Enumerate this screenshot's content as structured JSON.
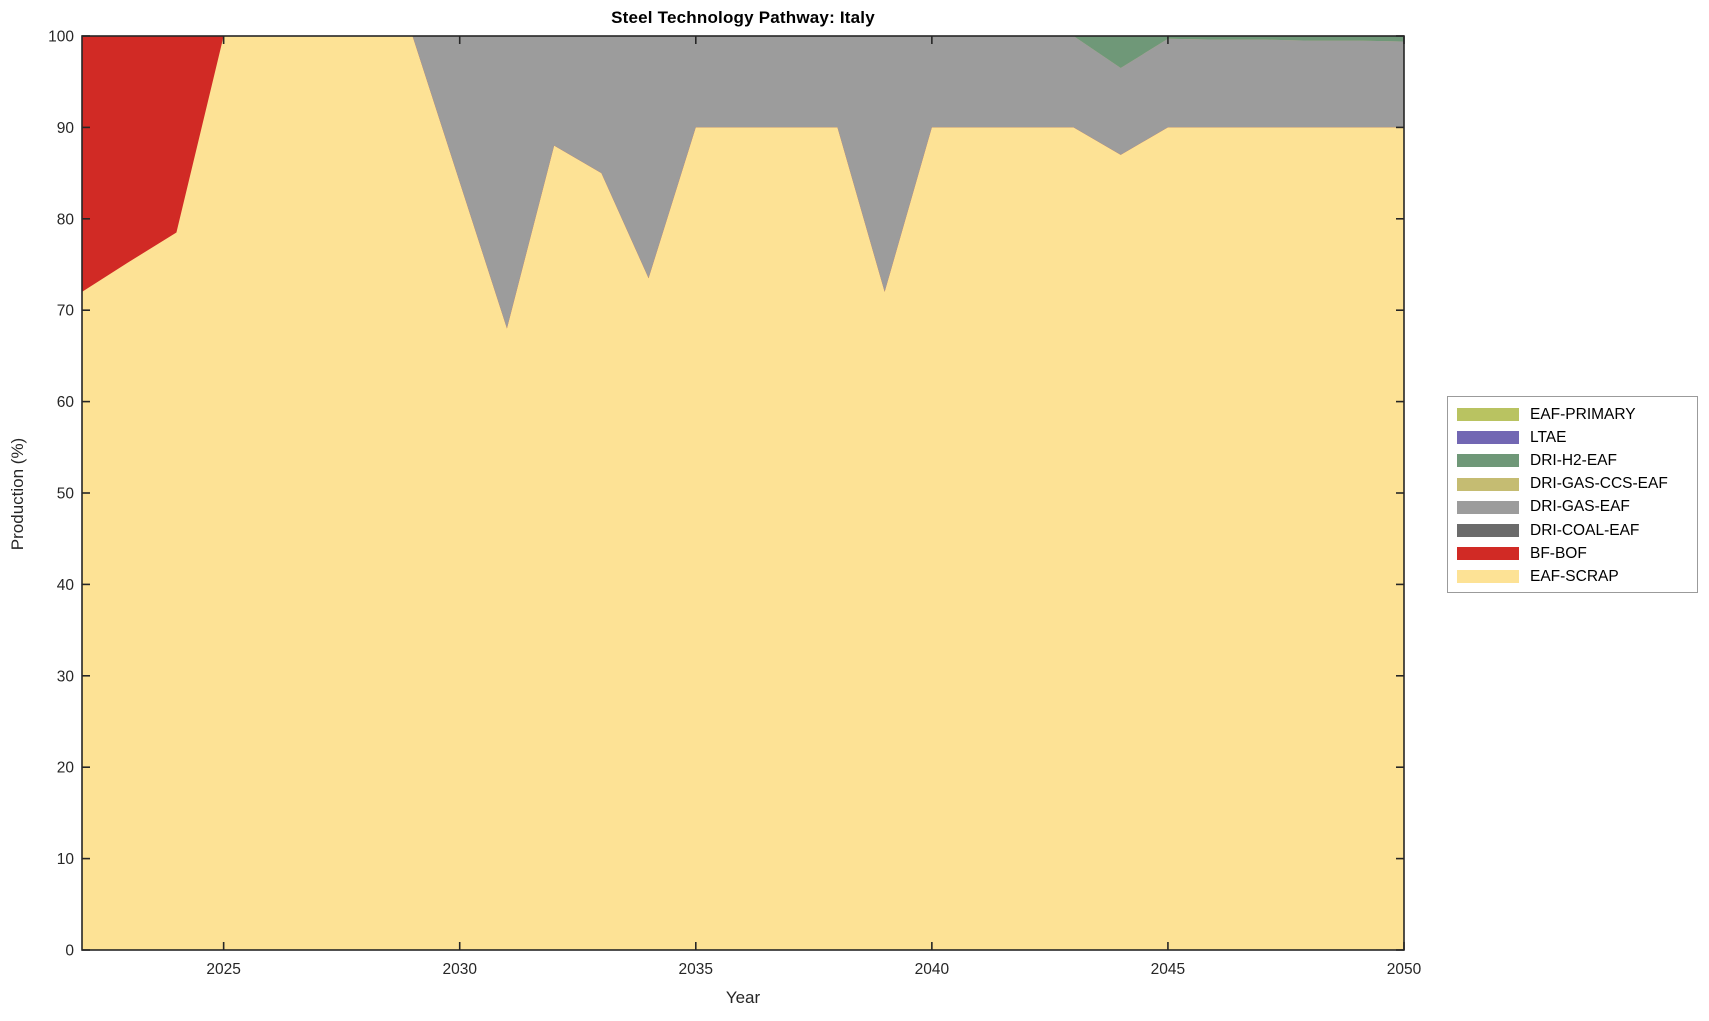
{
  "chart_data": {
    "type": "area",
    "stacked": true,
    "title": "Steel Technology Pathway: Italy",
    "xlabel": "Year",
    "ylabel": "Production (%)",
    "xlim": [
      2022,
      2050
    ],
    "ylim": [
      0,
      100
    ],
    "xticks": [
      "2025",
      "2030",
      "2035",
      "2040",
      "2045",
      "2050"
    ],
    "xtick_values": [
      2025,
      2030,
      2035,
      2040,
      2045,
      2050
    ],
    "yticks": [
      "0",
      "10",
      "20",
      "30",
      "40",
      "50",
      "60",
      "70",
      "80",
      "90",
      "100"
    ],
    "ytick_values": [
      0,
      10,
      20,
      30,
      40,
      50,
      60,
      70,
      80,
      90,
      100
    ],
    "grid": false,
    "axis_color": "#262626",
    "x": [
      2022,
      2023,
      2024,
      2025,
      2026,
      2027,
      2028,
      2029,
      2030,
      2031,
      2032,
      2033,
      2034,
      2035,
      2036,
      2037,
      2038,
      2039,
      2040,
      2041,
      2042,
      2043,
      2044,
      2045,
      2046,
      2047,
      2048,
      2049,
      2050
    ],
    "series_bottom_to_top": [
      {
        "name": "EAF-SCRAP",
        "color": "#FDE295",
        "values": [
          72,
          75.3,
          78.5,
          100,
          100,
          100,
          100,
          100,
          84,
          68,
          88,
          85,
          73.5,
          90,
          90,
          90,
          90,
          72,
          90,
          90,
          90,
          90,
          87,
          90,
          90,
          90,
          90,
          90,
          90
        ]
      },
      {
        "name": "BF-BOF",
        "color": "#D12A25",
        "values": [
          28,
          24.7,
          21.5,
          0,
          0,
          0,
          0,
          0,
          0,
          0,
          0,
          0,
          0,
          0,
          0,
          0,
          0,
          0,
          0,
          0,
          0,
          0,
          0,
          0,
          0,
          0,
          0,
          0,
          0
        ]
      },
      {
        "name": "DRI-COAL-EAF",
        "color": "#6B6B6B",
        "values": [
          0,
          0,
          0,
          0,
          0,
          0,
          0,
          0,
          0,
          0,
          0,
          0,
          0,
          0,
          0,
          0,
          0,
          0,
          0,
          0,
          0,
          0,
          0,
          0,
          0,
          0,
          0,
          0,
          0
        ]
      },
      {
        "name": "DRI-GAS-EAF",
        "color": "#9C9C9C",
        "values": [
          0,
          0,
          0,
          0,
          0,
          0,
          0,
          0,
          16,
          32,
          12,
          15,
          26.5,
          10,
          10,
          10,
          10,
          28,
          10,
          10,
          10,
          10,
          9.5,
          9.7,
          9.6,
          9.6,
          9.5,
          9.5,
          9.4
        ]
      },
      {
        "name": "DRI-GAS-CCS-EAF",
        "color": "#C5BC72",
        "values": [
          0,
          0,
          0,
          0,
          0,
          0,
          0,
          0,
          0,
          0,
          0,
          0,
          0,
          0,
          0,
          0,
          0,
          0,
          0,
          0,
          0,
          0,
          0,
          0,
          0,
          0,
          0,
          0,
          0
        ]
      },
      {
        "name": "DRI-H2-EAF",
        "color": "#6F9878",
        "values": [
          0,
          0,
          0,
          0,
          0,
          0,
          0,
          0,
          0,
          0,
          0,
          0,
          0,
          0,
          0,
          0,
          0,
          0,
          0,
          0,
          0,
          0,
          3.5,
          0.3,
          0.4,
          0.4,
          0.5,
          0.5,
          0.6
        ]
      },
      {
        "name": "LTAE",
        "color": "#7267B3",
        "values": [
          0,
          0,
          0,
          0,
          0,
          0,
          0,
          0,
          0,
          0,
          0,
          0,
          0,
          0,
          0,
          0,
          0,
          0,
          0,
          0,
          0,
          0,
          0,
          0,
          0,
          0,
          0,
          0,
          0
        ]
      },
      {
        "name": "EAF-PRIMARY",
        "color": "#B9C361",
        "values": [
          0,
          0,
          0,
          0,
          0,
          0,
          0,
          0,
          0,
          0,
          0,
          0,
          0,
          0,
          0,
          0,
          0,
          0,
          0,
          0,
          0,
          0,
          0,
          0,
          0,
          0,
          0,
          0,
          0
        ]
      }
    ],
    "legend": {
      "position": "right-outside-center",
      "entries_top_to_bottom": [
        "EAF-PRIMARY",
        "LTAE",
        "DRI-H2-EAF",
        "DRI-GAS-CCS-EAF",
        "DRI-GAS-EAF",
        "DRI-COAL-EAF",
        "BF-BOF",
        "EAF-SCRAP"
      ]
    }
  }
}
